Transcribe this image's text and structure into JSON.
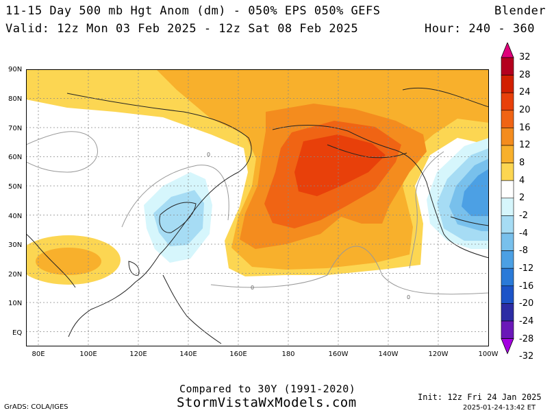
{
  "header": {
    "title": "11-15 Day 500 mb Hgt Anom (dm) - 050% EPS 050% GEFS",
    "brand": "Blender",
    "valid": "Valid: 12z Mon 03 Feb 2025 - 12z Sat 08 Feb 2025",
    "hour": "Hour: 240 - 360"
  },
  "map": {
    "lat_labels": [
      "90N",
      "80N",
      "70N",
      "60N",
      "50N",
      "40N",
      "30N",
      "20N",
      "10N",
      "EQ"
    ],
    "lon_labels": [
      "80E",
      "100E",
      "120E",
      "140E",
      "160E",
      "180",
      "160W",
      "140W",
      "120W",
      "100W"
    ],
    "contour_label": "0"
  },
  "colorbar": {
    "labels": [
      "32",
      "28",
      "24",
      "20",
      "16",
      "12",
      "8",
      "4",
      "2",
      "-2",
      "-4",
      "-8",
      "-12",
      "-16",
      "-20",
      "-24",
      "-28",
      "-32"
    ],
    "colors": [
      "#e0007a",
      "#b4001e",
      "#d22000",
      "#e8400a",
      "#f06414",
      "#f48c1e",
      "#f8b02c",
      "#fcd652",
      "#ffffff",
      "#d6f6fc",
      "#a6dcf4",
      "#78c0ec",
      "#4ca0e4",
      "#2a7ad8",
      "#1c54c8",
      "#2c2ca4",
      "#6a18b8",
      "#a400e0"
    ]
  },
  "footer": {
    "compared": "Compared to 30Y (1991-2020)",
    "site": "StormVistaWxModels.com",
    "grads": "GrADS: COLA/IGES",
    "init": "Init: 12z Fri 24 Jan 2025",
    "timestamp": "2025-01-24-13:42 ET"
  }
}
